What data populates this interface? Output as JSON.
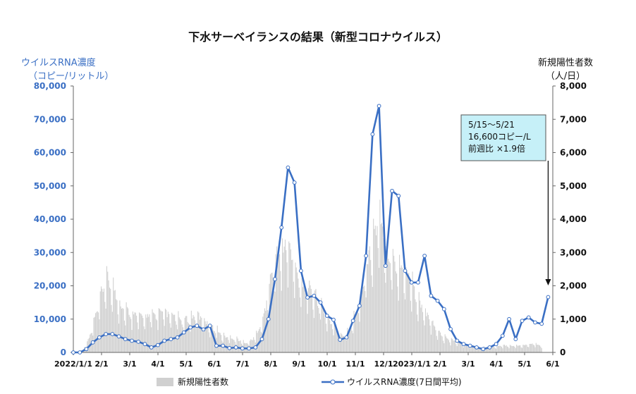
{
  "chart_data": {
    "type": "bar+line",
    "title": "下水サーベイランスの結果（新型コロナウイルス）",
    "y_left": {
      "label": "ウイルスRNA濃度",
      "unit": "（コピー/リットル）",
      "ticks": [
        "80,000",
        "70,000",
        "60,000",
        "50,000",
        "40,000",
        "30,000",
        "20,000",
        "10,000",
        "0"
      ],
      "ylim": [
        0,
        80000
      ]
    },
    "y_right": {
      "label": "新規陽性者数",
      "unit": "（人/日）",
      "ticks": [
        "8,000",
        "7,000",
        "6,000",
        "5,000",
        "4,000",
        "3,000",
        "2,000",
        "1,000",
        "0"
      ],
      "ylim": [
        0,
        8000
      ]
    },
    "x": {
      "ticks": [
        "2022/1/1",
        "2/1",
        "3/1",
        "4/1",
        "5/1",
        "6/1",
        "7/1",
        "8/1",
        "9/1",
        "10/1",
        "11/1",
        "12/1",
        "2023/1/1",
        "2/1",
        "3/1",
        "4/1",
        "5/1",
        "6/1"
      ],
      "range_days": [
        0,
        516
      ]
    },
    "grid": false,
    "legend": {
      "position": "bottom",
      "bar_label": "新規陽性者数",
      "line_label": "ウイルスRNA濃度(7日間平均)"
    },
    "colors": {
      "bar": "#d0d0d0",
      "line": "#3a6fc4",
      "marker_fill": "#ffffff",
      "callout_bg": "#c6f0f8",
      "callout_border": "#555555",
      "text_blue": "#3a6fc4"
    },
    "callout": {
      "lines": [
        "5/15～5/21",
        "16,600コピー/L",
        "前週比 ×1.9倍"
      ]
    },
    "series": [
      {
        "name": "ウイルスRNA濃度(7日間平均)",
        "axis": "left",
        "points": [
          [
            0,
            0
          ],
          [
            7,
            0
          ],
          [
            14,
            1000
          ],
          [
            21,
            3000
          ],
          [
            28,
            4500
          ],
          [
            35,
            5500
          ],
          [
            42,
            5500
          ],
          [
            49,
            4800
          ],
          [
            56,
            4000
          ],
          [
            63,
            3500
          ],
          [
            70,
            3200
          ],
          [
            77,
            2500
          ],
          [
            84,
            1500
          ],
          [
            91,
            2200
          ],
          [
            98,
            3500
          ],
          [
            105,
            4000
          ],
          [
            112,
            4500
          ],
          [
            119,
            6000
          ],
          [
            126,
            7500
          ],
          [
            133,
            8000
          ],
          [
            140,
            6900
          ],
          [
            147,
            8000
          ],
          [
            154,
            2000
          ],
          [
            161,
            2000
          ],
          [
            168,
            1300
          ],
          [
            175,
            1500
          ],
          [
            182,
            1200
          ],
          [
            189,
            1200
          ],
          [
            196,
            1500
          ],
          [
            203,
            4000
          ],
          [
            210,
            10000
          ],
          [
            217,
            22000
          ],
          [
            224,
            37500
          ],
          [
            231,
            55500
          ],
          [
            238,
            51000
          ],
          [
            245,
            24500
          ],
          [
            252,
            16500
          ],
          [
            259,
            17000
          ],
          [
            266,
            15000
          ],
          [
            273,
            11000
          ],
          [
            280,
            9800
          ],
          [
            287,
            3800
          ],
          [
            294,
            4500
          ],
          [
            301,
            9500
          ],
          [
            308,
            14000
          ],
          [
            315,
            29000
          ],
          [
            322,
            65500
          ],
          [
            329,
            74000
          ],
          [
            336,
            26000
          ],
          [
            343,
            48500
          ],
          [
            350,
            47000
          ],
          [
            357,
            24500
          ],
          [
            364,
            21000
          ],
          [
            371,
            21000
          ],
          [
            378,
            29000
          ],
          [
            385,
            17000
          ],
          [
            392,
            15500
          ],
          [
            399,
            13000
          ],
          [
            406,
            7000
          ],
          [
            413,
            3500
          ],
          [
            420,
            2500
          ],
          [
            427,
            2000
          ],
          [
            434,
            1500
          ],
          [
            441,
            1000
          ],
          [
            448,
            1500
          ],
          [
            455,
            2500
          ],
          [
            462,
            5000
          ],
          [
            469,
            10000
          ],
          [
            476,
            4000
          ],
          [
            483,
            9500
          ],
          [
            490,
            10500
          ],
          [
            497,
            9000
          ],
          [
            504,
            8600
          ],
          [
            511,
            16600
          ]
        ]
      },
      {
        "name": "新規陽性者数",
        "axis": "right",
        "knots": [
          [
            0,
            10
          ],
          [
            10,
            60
          ],
          [
            16,
            350
          ],
          [
            22,
            900
          ],
          [
            28,
            1500
          ],
          [
            33,
            2050
          ],
          [
            38,
            2150
          ],
          [
            43,
            1900
          ],
          [
            50,
            1450
          ],
          [
            58,
            1250
          ],
          [
            66,
            1180
          ],
          [
            72,
            1050
          ],
          [
            80,
            1100
          ],
          [
            88,
            1150
          ],
          [
            95,
            1200
          ],
          [
            102,
            1150
          ],
          [
            110,
            1050
          ],
          [
            118,
            950
          ],
          [
            126,
            1050
          ],
          [
            133,
            1100
          ],
          [
            140,
            1000
          ],
          [
            147,
            800
          ],
          [
            154,
            700
          ],
          [
            160,
            500
          ],
          [
            168,
            450
          ],
          [
            176,
            400
          ],
          [
            184,
            300
          ],
          [
            190,
            320
          ],
          [
            196,
            500
          ],
          [
            202,
            800
          ],
          [
            208,
            1500
          ],
          [
            214,
            2400
          ],
          [
            219,
            2950
          ],
          [
            224,
            3000
          ],
          [
            229,
            3300
          ],
          [
            234,
            3000
          ],
          [
            240,
            2350
          ],
          [
            247,
            2050
          ],
          [
            253,
            1900
          ],
          [
            260,
            1700
          ],
          [
            266,
            1450
          ],
          [
            272,
            1100
          ],
          [
            279,
            850
          ],
          [
            285,
            600
          ],
          [
            291,
            500
          ],
          [
            297,
            700
          ],
          [
            303,
            1100
          ],
          [
            309,
            1650
          ],
          [
            314,
            2300
          ],
          [
            319,
            3000
          ],
          [
            324,
            3600
          ],
          [
            328,
            3900
          ],
          [
            332,
            3700
          ],
          [
            337,
            3150
          ],
          [
            342,
            2900
          ],
          [
            347,
            2650
          ],
          [
            353,
            2550
          ],
          [
            359,
            2400
          ],
          [
            364,
            2100
          ],
          [
            370,
            1600
          ],
          [
            376,
            1300
          ],
          [
            382,
            1050
          ],
          [
            390,
            700
          ],
          [
            398,
            480
          ],
          [
            405,
            380
          ],
          [
            413,
            330
          ],
          [
            420,
            250
          ],
          [
            427,
            200
          ],
          [
            434,
            170
          ],
          [
            441,
            150
          ],
          [
            448,
            160
          ],
          [
            455,
            180
          ],
          [
            462,
            200
          ],
          [
            470,
            210
          ],
          [
            478,
            200
          ],
          [
            486,
            230
          ],
          [
            494,
            250
          ],
          [
            500,
            240
          ],
          [
            504,
            200
          ],
          [
            510,
            160
          ]
        ],
        "bar_days": [
          0,
          504
        ]
      }
    ]
  }
}
